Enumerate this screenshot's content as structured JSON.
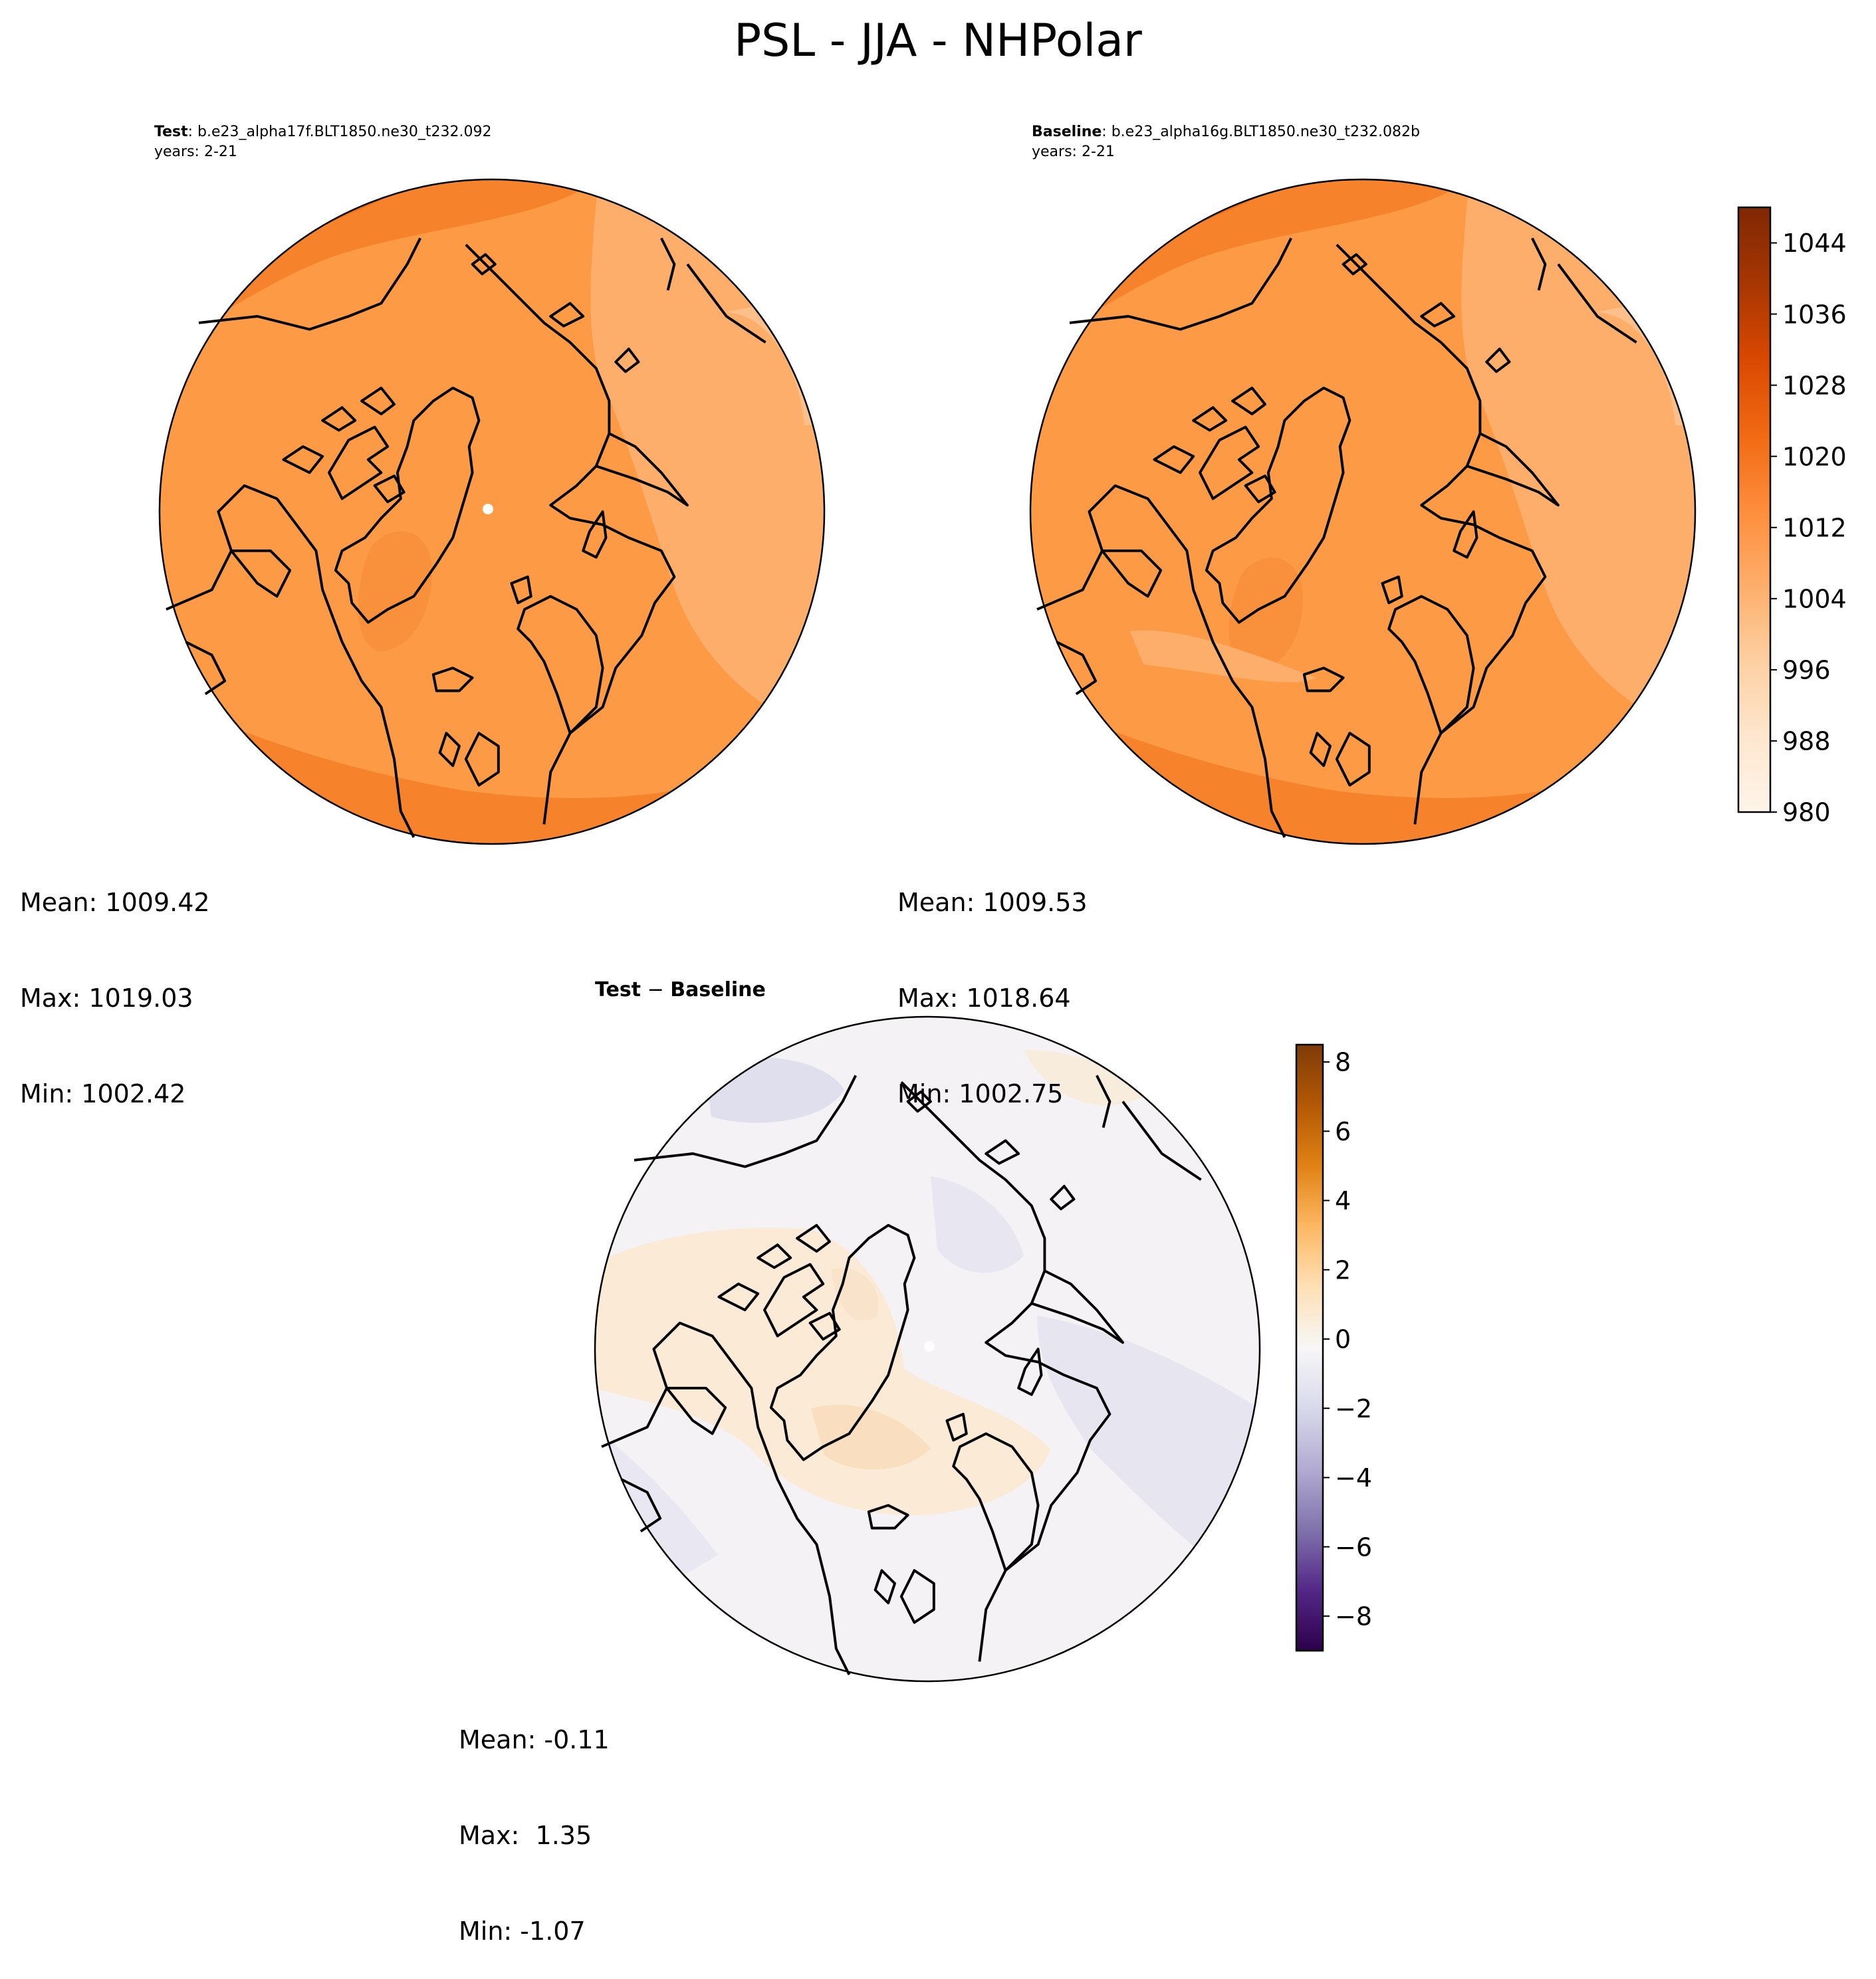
{
  "figure": {
    "title": "PSL - JJA - NHPolar"
  },
  "panels": {
    "test": {
      "label": "Test",
      "case": ": b.e23_alpha17f.BLT1850.ne30_t232.092",
      "years": "years: 2-21",
      "stats": {
        "mean": "Mean: 1009.42",
        "max": "Max: 1019.03",
        "min": "Min: 1002.42"
      }
    },
    "baseline": {
      "label": "Baseline",
      "case": ": b.e23_alpha16g.BLT1850.ne30_t232.082b",
      "years": "years: 2-21",
      "stats": {
        "mean": "Mean: 1009.53",
        "max": "Max: 1018.64",
        "min": "Min: 1002.75"
      }
    },
    "diff": {
      "title_a": "Test",
      "title_sep": " − ",
      "title_b": "Baseline",
      "stats": {
        "mean": "Mean: -0.11",
        "max": "Max:  1.35",
        "min": "Min: -1.07"
      }
    }
  },
  "colorbars": {
    "absolute": {
      "colormap": "Oranges",
      "range": [
        980,
        1048
      ],
      "tick_values": [
        980,
        988,
        996,
        1004,
        1012,
        1020,
        1028,
        1036,
        1044
      ],
      "tick_labels": [
        "980",
        "988",
        "996",
        "1004",
        "1012",
        "1020",
        "1028",
        "1036",
        "1044"
      ],
      "colors": [
        "#fff5eb",
        "#fee6ce",
        "#fdd0a2",
        "#fdae6b",
        "#fd8d3c",
        "#f16913",
        "#d94801",
        "#a63603",
        "#7f2704"
      ]
    },
    "difference": {
      "colormap": "PuOr_r",
      "range": [
        -9,
        8.5
      ],
      "tick_values": [
        -8,
        -6,
        -4,
        -2,
        0,
        2,
        4,
        6,
        8
      ],
      "tick_labels": [
        "−8",
        "−6",
        "−4",
        "−2",
        "0",
        "2",
        "4",
        "6",
        "8"
      ],
      "colors": [
        "#2d004b",
        "#542788",
        "#8073ac",
        "#b2abd2",
        "#d8daeb",
        "#f7f7f7",
        "#fee0b6",
        "#fdb863",
        "#e08214",
        "#b35806",
        "#7f3b08"
      ]
    }
  },
  "colors": {
    "test_field_base": "#fd9a45",
    "baseline_field_base": "#fd9a45",
    "diff_field_base": "#f4f2f4",
    "coastline": "#000000"
  }
}
